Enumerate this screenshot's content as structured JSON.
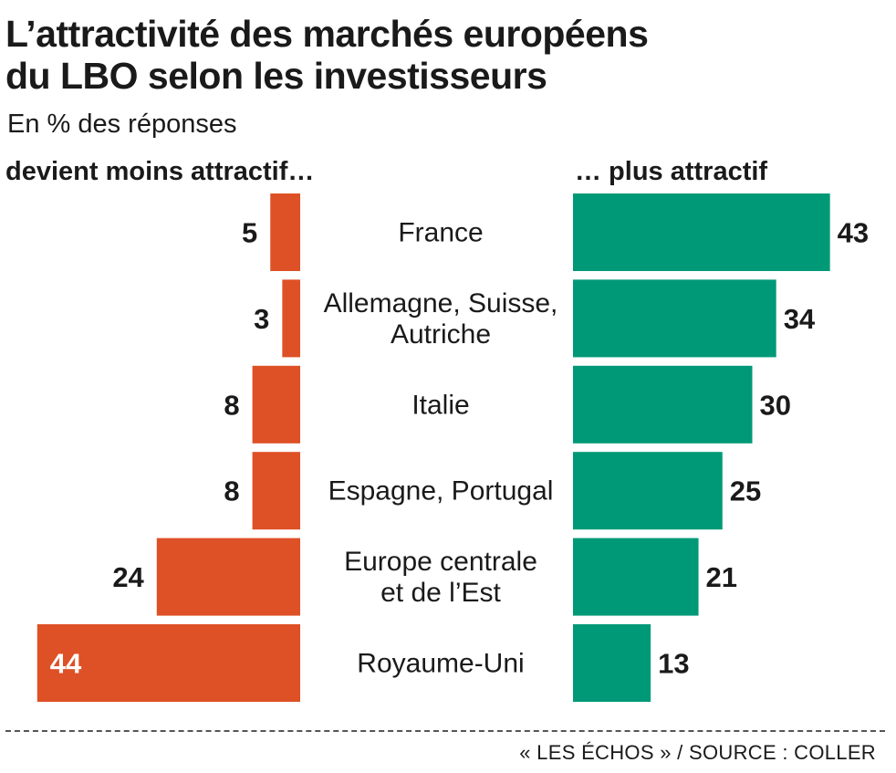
{
  "header": {
    "title_line1": "L’attractivité des marchés européens",
    "title_line2": "du LBO selon les investisseurs",
    "subtitle": "En % des réponses",
    "left_heading": "devient moins attractif…",
    "right_heading": "… plus attractif"
  },
  "footer": {
    "source": "« LES ÉCHOS » / SOURCE : COLLER"
  },
  "colors": {
    "less_attractive": "#de5026",
    "more_attractive": "#009977",
    "text": "#1a1a1a"
  },
  "chart_data": {
    "type": "bar",
    "orientation": "horizontal-diverging",
    "categories": [
      [
        "France"
      ],
      [
        "Allemagne, Suisse,",
        "Autriche"
      ],
      [
        "Italie"
      ],
      [
        "Espagne, Portugal"
      ],
      [
        "Europe centrale",
        "et de l’Est"
      ],
      [
        "Royaume-Uni"
      ]
    ],
    "series": [
      {
        "name": "devient moins attractif…",
        "values": [
          5,
          3,
          8,
          8,
          24,
          44
        ]
      },
      {
        "name": "… plus attractif",
        "values": [
          43,
          34,
          30,
          25,
          21,
          13
        ]
      }
    ],
    "xlim": [
      0,
      44
    ],
    "grid": false,
    "legend": "top"
  }
}
